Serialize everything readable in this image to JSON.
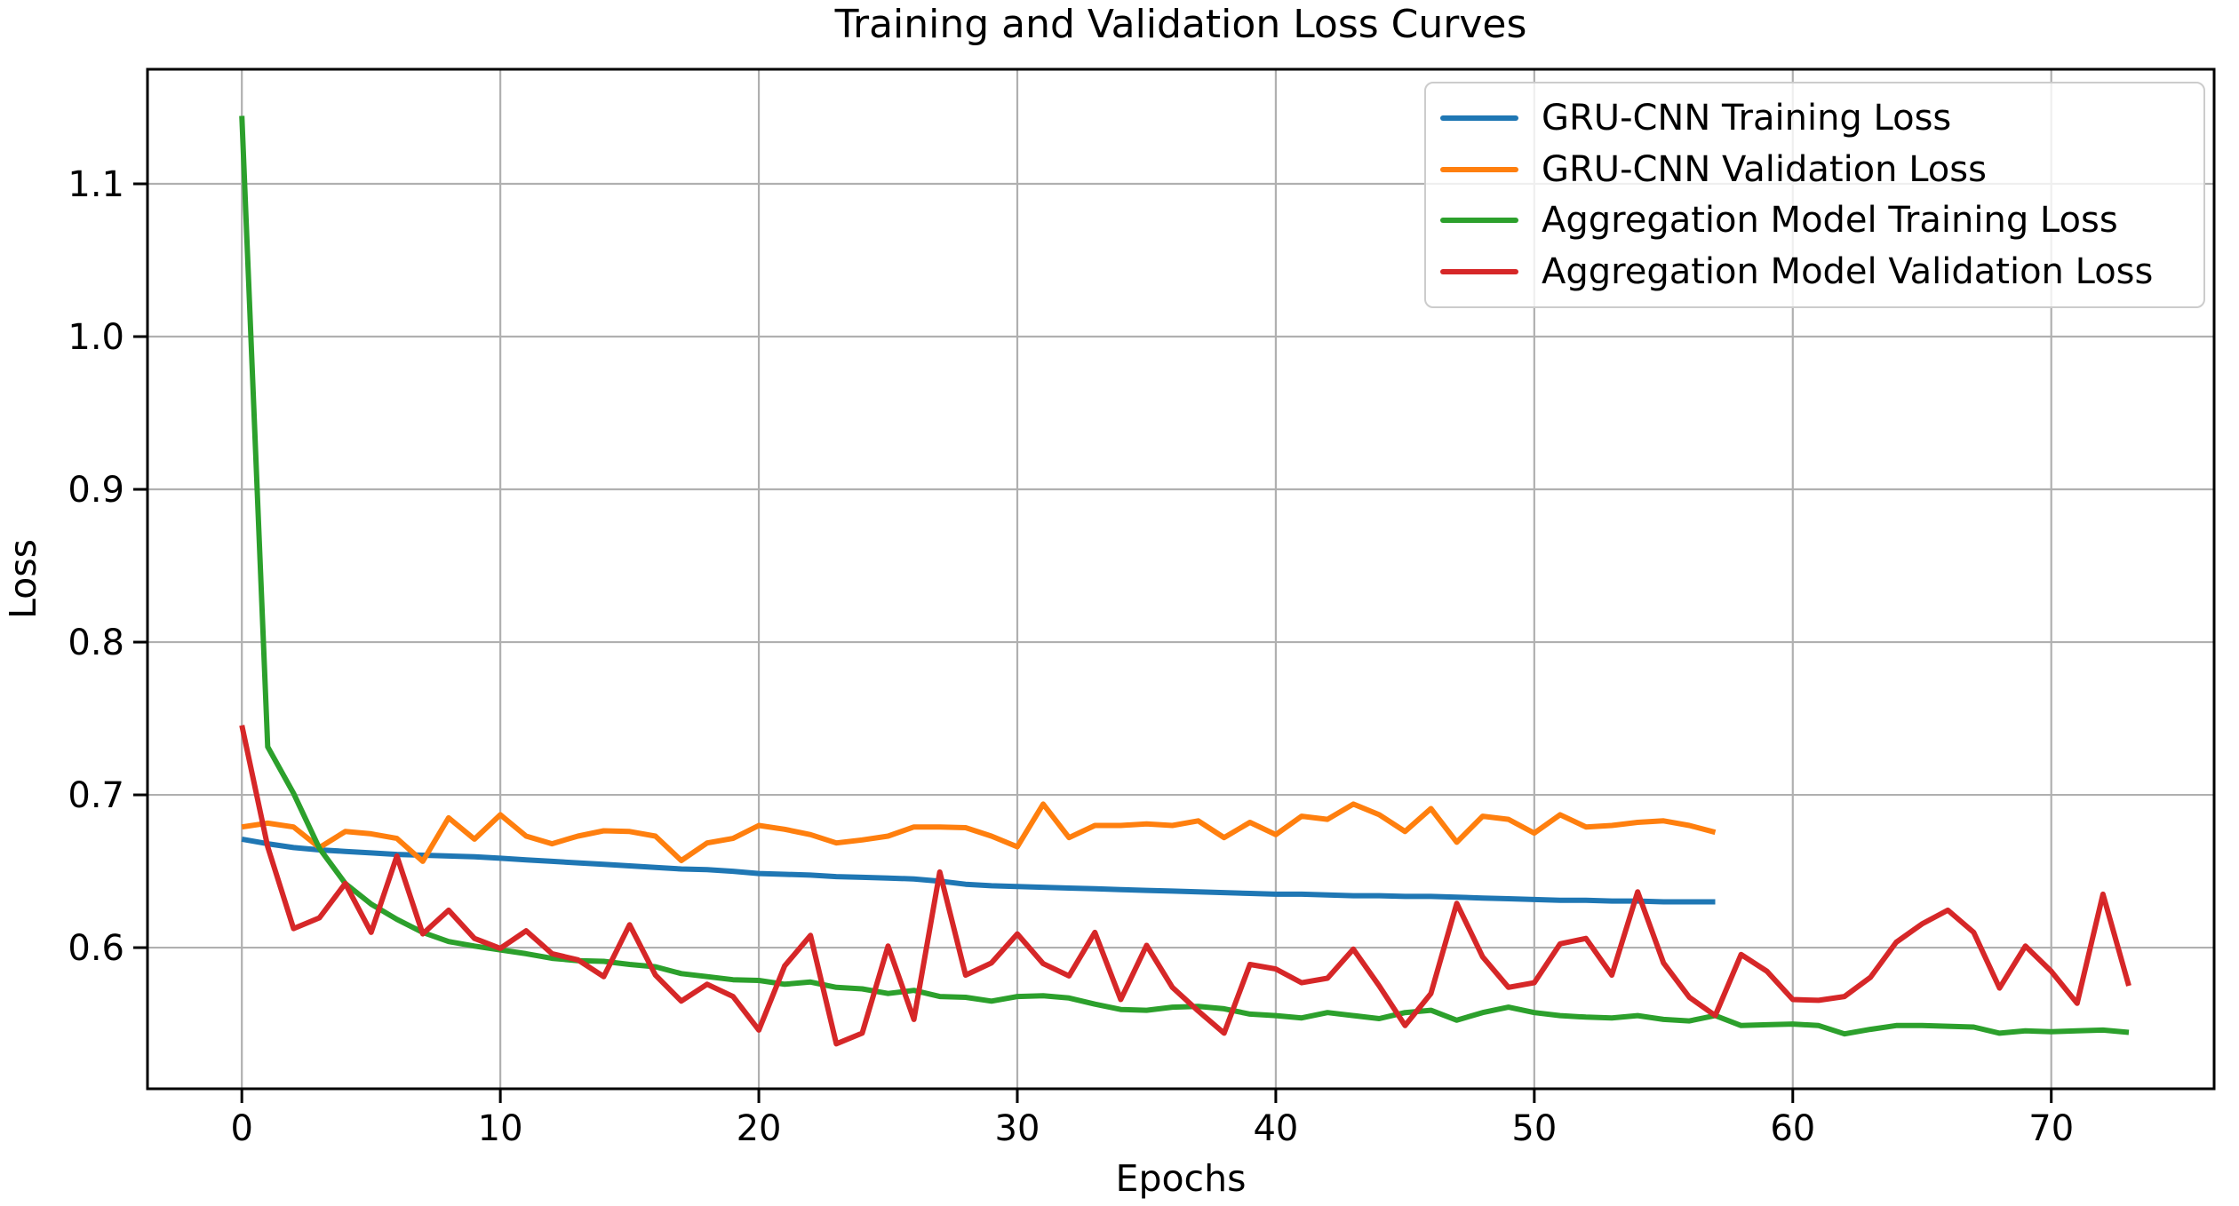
{
  "title": "Training and Validation Loss Curves",
  "axes": {
    "xlabel": "Epochs",
    "ylabel": "Loss"
  },
  "colors": {
    "grid": "#b0b0b0",
    "spine": "#000000",
    "text": "#000000",
    "legend_border": "#cccccc",
    "blue": "#1f77b4",
    "orange": "#ff7f0e",
    "green": "#2ca02c",
    "red": "#d62728"
  },
  "legend": {
    "items": [
      {
        "label": "GRU-CNN Training Loss",
        "color": "#1f77b4"
      },
      {
        "label": "GRU-CNN Validation Loss",
        "color": "#ff7f0e"
      },
      {
        "label": "Aggregation Model Training Loss",
        "color": "#2ca02c"
      },
      {
        "label": "Aggregation Model Validation Loss",
        "color": "#d62728"
      }
    ]
  },
  "chart_data": {
    "type": "line",
    "title": "Training and Validation Loss Curves",
    "xlabel": "Epochs",
    "ylabel": "Loss",
    "grid": true,
    "legend_position": "upper right",
    "xlim": [
      -3.65,
      76.3
    ],
    "ylim": [
      0.5076,
      1.175
    ],
    "x_ticks": [
      0,
      10,
      20,
      30,
      40,
      50,
      60,
      70
    ],
    "x_tick_labels": [
      "0",
      "10",
      "20",
      "30",
      "40",
      "50",
      "60",
      "70"
    ],
    "y_ticks": [
      0.6,
      0.7,
      0.8,
      0.9,
      1.0,
      1.1
    ],
    "y_tick_labels": [
      "0.6",
      "0.7",
      "0.8",
      "0.9",
      "1.0",
      "1.1"
    ],
    "x_unit": "epoch index starting at 0",
    "series": [
      {
        "name": "GRU-CNN Training Loss",
        "color": "#1f77b4",
        "values": [
          0.671,
          0.668,
          0.6655,
          0.664,
          0.663,
          0.662,
          0.661,
          0.6605,
          0.66,
          0.6595,
          0.6585,
          0.6575,
          0.6565,
          0.6555,
          0.6545,
          0.6535,
          0.6525,
          0.6515,
          0.651,
          0.65,
          0.6485,
          0.648,
          0.6475,
          0.6465,
          0.646,
          0.6455,
          0.645,
          0.6435,
          0.6415,
          0.6405,
          0.64,
          0.6395,
          0.639,
          0.6385,
          0.638,
          0.6375,
          0.637,
          0.6365,
          0.636,
          0.6355,
          0.635,
          0.635,
          0.6345,
          0.634,
          0.634,
          0.6335,
          0.6335,
          0.633,
          0.6325,
          0.632,
          0.6315,
          0.631,
          0.631,
          0.6305,
          0.6305,
          0.63,
          0.63,
          0.63
        ]
      },
      {
        "name": "GRU-CNN Validation Loss",
        "color": "#ff7f0e",
        "values": [
          0.679,
          0.6815,
          0.679,
          0.6655,
          0.676,
          0.6745,
          0.6715,
          0.6565,
          0.685,
          0.671,
          0.687,
          0.673,
          0.668,
          0.673,
          0.6765,
          0.676,
          0.673,
          0.657,
          0.6685,
          0.6715,
          0.68,
          0.6775,
          0.674,
          0.6685,
          0.6705,
          0.673,
          0.679,
          0.679,
          0.6785,
          0.673,
          0.666,
          0.694,
          0.672,
          0.68,
          0.68,
          0.681,
          0.68,
          0.683,
          0.672,
          0.682,
          0.674,
          0.686,
          0.684,
          0.694,
          0.687,
          0.676,
          0.691,
          0.669,
          0.686,
          0.684,
          0.675,
          0.687,
          0.679,
          0.68,
          0.682,
          0.683,
          0.68,
          0.6755
        ]
      },
      {
        "name": "Aggregation Model Training Loss",
        "color": "#2ca02c",
        "values": [
          1.1445,
          0.7315,
          0.701,
          0.665,
          0.642,
          0.6285,
          0.6185,
          0.61,
          0.604,
          0.601,
          0.5985,
          0.596,
          0.593,
          0.5915,
          0.591,
          0.589,
          0.5875,
          0.583,
          0.581,
          0.579,
          0.5785,
          0.576,
          0.5775,
          0.574,
          0.573,
          0.57,
          0.572,
          0.568,
          0.5675,
          0.565,
          0.568,
          0.5685,
          0.567,
          0.563,
          0.5595,
          0.559,
          0.561,
          0.5615,
          0.56,
          0.5565,
          0.5555,
          0.554,
          0.5575,
          0.5555,
          0.5535,
          0.5575,
          0.559,
          0.5525,
          0.5575,
          0.561,
          0.5575,
          0.5555,
          0.5545,
          0.554,
          0.5555,
          0.553,
          0.552,
          0.5555,
          0.549,
          0.5495,
          0.55,
          0.549,
          0.5435,
          0.5465,
          0.549,
          0.549,
          0.5485,
          0.548,
          0.544,
          0.5455,
          0.545,
          0.5455,
          0.546,
          0.5445
        ]
      },
      {
        "name": "Aggregation Model Validation Loss",
        "color": "#d62728",
        "values": [
          0.7455,
          0.666,
          0.6125,
          0.6195,
          0.642,
          0.61,
          0.66,
          0.609,
          0.6245,
          0.606,
          0.5995,
          0.611,
          0.596,
          0.592,
          0.581,
          0.615,
          0.582,
          0.565,
          0.576,
          0.568,
          0.546,
          0.588,
          0.608,
          0.537,
          0.544,
          0.601,
          0.553,
          0.6495,
          0.582,
          0.59,
          0.609,
          0.5895,
          0.5815,
          0.61,
          0.566,
          0.6015,
          0.574,
          0.5585,
          0.544,
          0.589,
          0.586,
          0.577,
          0.58,
          0.599,
          0.575,
          0.549,
          0.57,
          0.629,
          0.594,
          0.574,
          0.577,
          0.6025,
          0.606,
          0.582,
          0.6365,
          0.59,
          0.5675,
          0.5555,
          0.5955,
          0.5845,
          0.566,
          0.5655,
          0.568,
          0.5805,
          0.6035,
          0.6155,
          0.6245,
          0.61,
          0.5735,
          0.601,
          0.5845,
          0.5635,
          0.635,
          0.575
        ]
      }
    ]
  }
}
